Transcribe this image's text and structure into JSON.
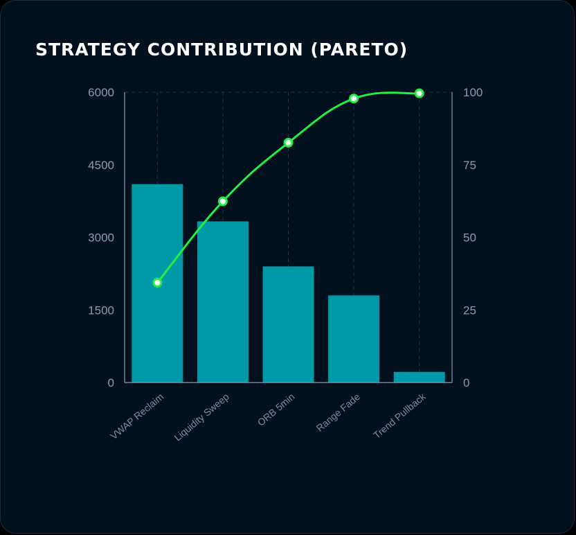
{
  "card": {
    "title": "STRATEGY CONTRIBUTION (PARETO)"
  },
  "colors": {
    "background": "#03111f",
    "bar": "#0099a8",
    "line": "#22ee44",
    "grid": "#22364a",
    "axis": "#8d9aae"
  },
  "chart_data": {
    "type": "bar",
    "title": "STRATEGY CONTRIBUTION (PARETO)",
    "categories": [
      "VWAP Reclaim",
      "Liquidity Sweep",
      "ORB 5min",
      "Range Fade",
      "Trend Pullback"
    ],
    "series": [
      {
        "type": "bar",
        "axis": "left",
        "values": [
          4100,
          3330,
          2400,
          1800,
          220
        ]
      },
      {
        "type": "line",
        "axis": "right",
        "values": [
          34.4,
          62.4,
          82.6,
          97.8,
          99.6
        ]
      }
    ],
    "y_left": {
      "ylim": [
        0,
        6000
      ],
      "ticks": [
        0,
        1500,
        3000,
        4500,
        6000
      ]
    },
    "y_right": {
      "ylim": [
        0,
        100
      ],
      "ticks": [
        0,
        25,
        50,
        75,
        100
      ]
    },
    "grid": "vertical-dashed",
    "xlabel": "",
    "ylabel": ""
  }
}
